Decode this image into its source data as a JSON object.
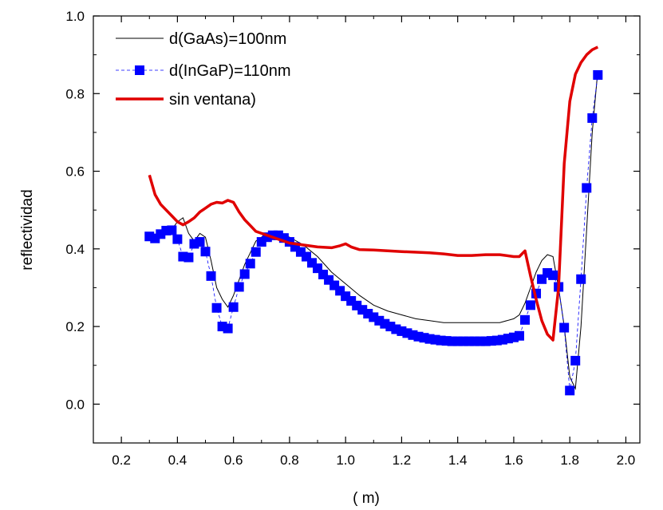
{
  "chart_data": {
    "type": "line",
    "title": "",
    "xlabel": "( m)",
    "ylabel": "reflectividad",
    "xlim": [
      0.1,
      2.05
    ],
    "ylim": [
      -0.1,
      1.0
    ],
    "x_ticks": [
      0.2,
      0.4,
      0.6,
      0.8,
      1.0,
      1.2,
      1.4,
      1.6,
      1.8,
      2.0
    ],
    "x_tick_labels": [
      "0.2",
      "0.4",
      "0.6",
      "0.8",
      "1.0",
      "1.2",
      "1.4",
      "1.6",
      "1.8",
      "2.0"
    ],
    "y_ticks": [
      0.0,
      0.2,
      0.4,
      0.6,
      0.8,
      1.0
    ],
    "y_tick_labels": [
      "0.0",
      "0.2",
      "0.4",
      "0.6",
      "0.8",
      "1.0"
    ],
    "grid": false,
    "legend_position": "top-left",
    "series": [
      {
        "name": "d(GaAs)=100nm",
        "color": "#000000",
        "style": "thin-line",
        "x": [
          0.3,
          0.33,
          0.36,
          0.38,
          0.4,
          0.42,
          0.44,
          0.46,
          0.48,
          0.5,
          0.52,
          0.54,
          0.56,
          0.58,
          0.6,
          0.62,
          0.64,
          0.66,
          0.68,
          0.7,
          0.72,
          0.74,
          0.76,
          0.8,
          0.85,
          0.9,
          0.95,
          1.0,
          1.05,
          1.1,
          1.15,
          1.2,
          1.25,
          1.3,
          1.35,
          1.4,
          1.45,
          1.5,
          1.55,
          1.6,
          1.62,
          1.64,
          1.66,
          1.68,
          1.7,
          1.72,
          1.74,
          1.76,
          1.78,
          1.8,
          1.82,
          1.84,
          1.86,
          1.88,
          1.9
        ],
        "values": [
          0.43,
          0.43,
          0.44,
          0.45,
          0.47,
          0.48,
          0.44,
          0.42,
          0.44,
          0.43,
          0.37,
          0.3,
          0.27,
          0.25,
          0.28,
          0.32,
          0.36,
          0.39,
          0.42,
          0.43,
          0.44,
          0.44,
          0.44,
          0.43,
          0.41,
          0.38,
          0.34,
          0.31,
          0.28,
          0.255,
          0.24,
          0.23,
          0.22,
          0.215,
          0.21,
          0.21,
          0.21,
          0.21,
          0.21,
          0.22,
          0.23,
          0.26,
          0.3,
          0.34,
          0.37,
          0.385,
          0.38,
          0.3,
          0.2,
          0.07,
          0.04,
          0.2,
          0.45,
          0.7,
          0.86
        ]
      },
      {
        "name": "d(InGaP)=110nm",
        "color": "#0000ff",
        "style": "squares",
        "x": [
          0.3,
          0.32,
          0.34,
          0.36,
          0.38,
          0.4,
          0.42,
          0.44,
          0.46,
          0.48,
          0.5,
          0.52,
          0.54,
          0.56,
          0.58,
          0.6,
          0.62,
          0.64,
          0.66,
          0.68,
          0.7,
          0.72,
          0.74,
          0.76,
          0.78,
          0.8,
          0.82,
          0.84,
          0.86,
          0.88,
          0.9,
          0.92,
          0.94,
          0.96,
          0.98,
          1.0,
          1.02,
          1.04,
          1.06,
          1.08,
          1.1,
          1.12,
          1.14,
          1.16,
          1.18,
          1.2,
          1.22,
          1.24,
          1.26,
          1.28,
          1.3,
          1.32,
          1.34,
          1.36,
          1.38,
          1.4,
          1.42,
          1.44,
          1.46,
          1.48,
          1.5,
          1.52,
          1.54,
          1.56,
          1.58,
          1.6,
          1.62,
          1.64,
          1.66,
          1.68,
          1.7,
          1.72,
          1.74,
          1.76,
          1.78,
          1.8,
          1.82,
          1.84,
          1.86,
          1.88,
          1.9
        ],
        "values": [
          0.432,
          0.427,
          0.438,
          0.447,
          0.448,
          0.425,
          0.38,
          0.378,
          0.413,
          0.418,
          0.393,
          0.33,
          0.248,
          0.2,
          0.195,
          0.25,
          0.302,
          0.335,
          0.362,
          0.392,
          0.418,
          0.43,
          0.435,
          0.435,
          0.428,
          0.418,
          0.405,
          0.392,
          0.38,
          0.364,
          0.35,
          0.334,
          0.32,
          0.306,
          0.292,
          0.278,
          0.266,
          0.254,
          0.243,
          0.233,
          0.224,
          0.215,
          0.207,
          0.2,
          0.193,
          0.188,
          0.183,
          0.178,
          0.174,
          0.171,
          0.168,
          0.166,
          0.164,
          0.163,
          0.162,
          0.162,
          0.162,
          0.162,
          0.162,
          0.162,
          0.162,
          0.163,
          0.164,
          0.166,
          0.169,
          0.172,
          0.176,
          0.217,
          0.255,
          0.285,
          0.322,
          0.338,
          0.332,
          0.302,
          0.197,
          0.035,
          0.112,
          0.322,
          0.557,
          0.737,
          0.848
        ]
      },
      {
        "name": "sin ventana)",
        "color": "#e00000",
        "style": "thick-line",
        "x": [
          0.3,
          0.32,
          0.34,
          0.36,
          0.38,
          0.4,
          0.42,
          0.44,
          0.46,
          0.48,
          0.5,
          0.52,
          0.54,
          0.56,
          0.58,
          0.6,
          0.62,
          0.64,
          0.66,
          0.68,
          0.7,
          0.72,
          0.76,
          0.8,
          0.85,
          0.9,
          0.95,
          0.98,
          1.0,
          1.02,
          1.05,
          1.1,
          1.2,
          1.3,
          1.35,
          1.4,
          1.45,
          1.5,
          1.55,
          1.6,
          1.62,
          1.64,
          1.66,
          1.68,
          1.7,
          1.72,
          1.74,
          1.76,
          1.78,
          1.8,
          1.82,
          1.84,
          1.86,
          1.88,
          1.9
        ],
        "values": [
          0.59,
          0.54,
          0.515,
          0.5,
          0.485,
          0.47,
          0.462,
          0.47,
          0.48,
          0.495,
          0.505,
          0.515,
          0.52,
          0.518,
          0.525,
          0.52,
          0.495,
          0.475,
          0.46,
          0.445,
          0.44,
          0.435,
          0.425,
          0.415,
          0.41,
          0.405,
          0.403,
          0.408,
          0.413,
          0.405,
          0.398,
          0.397,
          0.393,
          0.39,
          0.387,
          0.383,
          0.383,
          0.385,
          0.385,
          0.38,
          0.38,
          0.395,
          0.33,
          0.27,
          0.215,
          0.18,
          0.165,
          0.3,
          0.62,
          0.78,
          0.85,
          0.88,
          0.9,
          0.913,
          0.92
        ]
      }
    ]
  }
}
